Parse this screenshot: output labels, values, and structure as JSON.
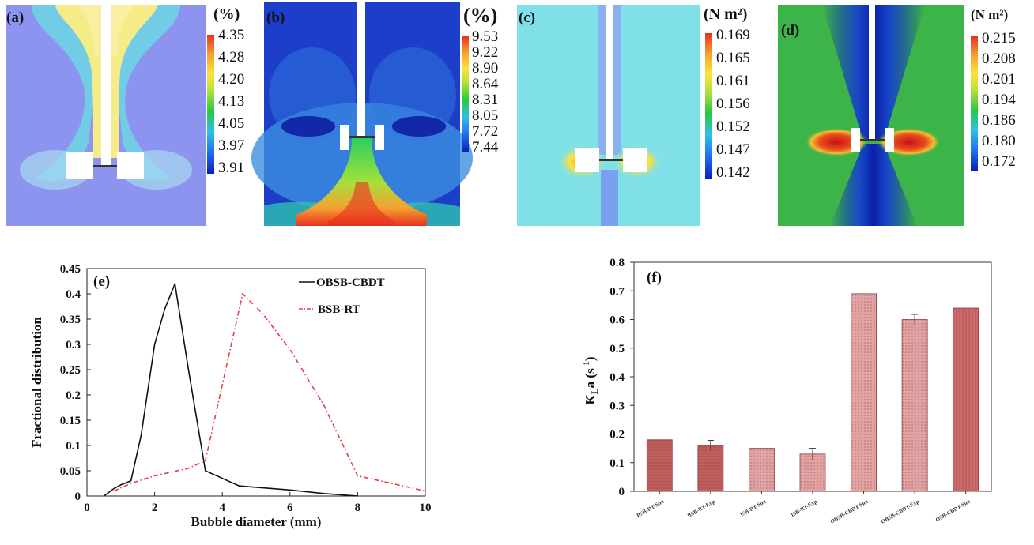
{
  "panels": [
    {
      "label": "(a)",
      "unit": "(%)",
      "ticks": [
        "4.35",
        "4.28",
        "4.20",
        "4.13",
        "4.05",
        "3.97",
        "3.91"
      ]
    },
    {
      "label": "(b)",
      "unit": "(%)",
      "ticks": [
        "9.53",
        "9.22",
        "8.90",
        "8.64",
        "8.31",
        "8.05",
        "7.72",
        "7.44"
      ]
    },
    {
      "label": "(c)",
      "unit": "(N m²)",
      "ticks": [
        "0.169",
        "0.165",
        "0.161",
        "0.156",
        "0.152",
        "0.147",
        "0.142"
      ]
    },
    {
      "label": "(d)",
      "unit": "(N m²)",
      "ticks": [
        "0.215",
        "0.208",
        "0.201",
        "0.194",
        "0.186",
        "0.180",
        "0.172"
      ]
    }
  ],
  "colors": {
    "jet": [
      "#0a20b8",
      "#1f6ff0",
      "#2fc0e6",
      "#28c840",
      "#b4e23a",
      "#fde23c",
      "#f5a030",
      "#e83020"
    ],
    "black": "#111111",
    "red_dash": "#e0404a",
    "bar_dark": "#c0605e",
    "bar_light": "#dc9a9a",
    "bar_mid": "#cc7070"
  },
  "chart_data": [
    {
      "id": "e",
      "type": "line",
      "label": "(e)",
      "xlabel": "Bubble diameter (mm)",
      "ylabel": "Fractional distribution",
      "xlim": [
        0,
        10
      ],
      "ylim": [
        0,
        0.45
      ],
      "xticks": [
        "0",
        "2",
        "4",
        "6",
        "8",
        "10"
      ],
      "yticks": [
        "0",
        "0.05",
        "0.1",
        "0.15",
        "0.2",
        "0.25",
        "0.3",
        "0.35",
        "0.4",
        "0.45"
      ],
      "legend_position": "top-right",
      "series": [
        {
          "name": "OBSB-CBDT",
          "style": "solid",
          "x": [
            0.5,
            0.8,
            1.0,
            1.3,
            1.6,
            2.0,
            2.3,
            2.6,
            3.0,
            3.5,
            4.5,
            6.0,
            7.0,
            8.0
          ],
          "y": [
            0,
            0.015,
            0.022,
            0.03,
            0.12,
            0.3,
            0.37,
            0.42,
            0.25,
            0.05,
            0.02,
            0.012,
            0.005,
            0
          ]
        },
        {
          "name": "BSB-RT",
          "style": "dashdot",
          "x": [
            0.8,
            1.3,
            2.0,
            3.0,
            3.5,
            4.6,
            5.2,
            6.0,
            7.0,
            8.0,
            9.0,
            10.0
          ],
          "y": [
            0.01,
            0.025,
            0.04,
            0.055,
            0.07,
            0.4,
            0.36,
            0.29,
            0.18,
            0.04,
            0.025,
            0.01
          ]
        }
      ]
    },
    {
      "id": "f",
      "type": "bar",
      "label": "(f)",
      "ylabel_main": "K",
      "ylabel_sub": "L",
      "ylabel_rest": "a (s",
      "ylabel_sup": "-1",
      "ylabel_end": ")",
      "ylim": [
        0,
        0.8
      ],
      "yticks": [
        "0",
        "0.1",
        "0.2",
        "0.3",
        "0.4",
        "0.5",
        "0.6",
        "0.7",
        "0.8"
      ],
      "categories": [
        "BSB-RT-Sim",
        "BSB-RT-Exp",
        "ISB-RT-Sim",
        "ISB-RT-Exp",
        "OBSB-CBDT-Sim",
        "OBSB-CBDT-Exp",
        "OSB-CBDT-Sim"
      ],
      "values": [
        0.18,
        0.16,
        0.15,
        0.13,
        0.69,
        0.6,
        0.64
      ],
      "errors": [
        0,
        0.018,
        0,
        0.02,
        0,
        0.018,
        0
      ],
      "fills": [
        "dark",
        "dark",
        "light",
        "light",
        "light",
        "light",
        "mid"
      ]
    }
  ]
}
